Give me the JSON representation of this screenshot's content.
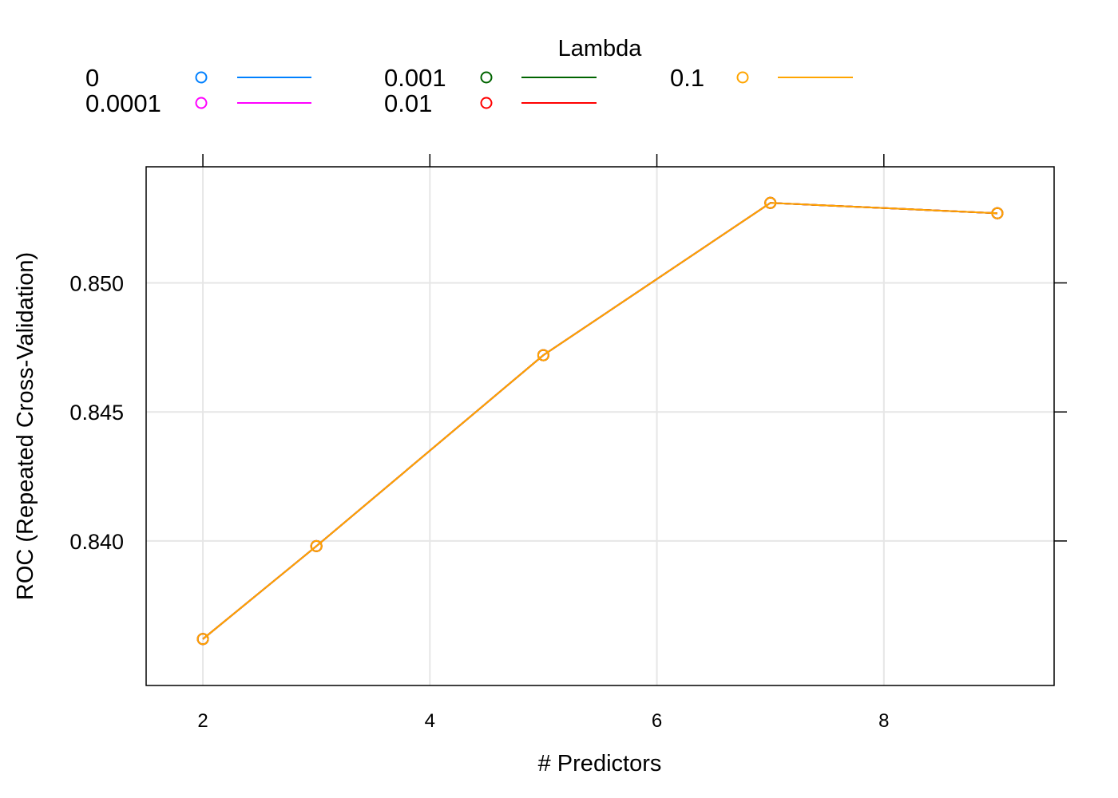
{
  "chart_data": {
    "type": "line",
    "xlabel": "# Predictors",
    "ylabel": "ROC (Repeated Cross-Validation)",
    "xlim": [
      1.5,
      9.5
    ],
    "ylim": [
      0.8344,
      0.8545
    ],
    "x_ticks": [
      2,
      4,
      6,
      8
    ],
    "x_tick_labels": [
      "2",
      "4",
      "6",
      "8"
    ],
    "y_ticks": [
      0.84,
      0.845,
      0.85
    ],
    "y_tick_labels": [
      "0.840",
      "0.845",
      "0.850"
    ],
    "grid": true,
    "legend_title": "Lambda",
    "legend_position": "top",
    "x": [
      2,
      3,
      5,
      7,
      9
    ],
    "series": [
      {
        "name": "0",
        "color": "#0080ff",
        "values": [
          0.8362,
          0.8398,
          0.8472,
          0.8531,
          0.8527
        ]
      },
      {
        "name": "0.0001",
        "color": "#ff00ff",
        "values": [
          0.8362,
          0.8398,
          0.8472,
          0.8531,
          0.8527
        ]
      },
      {
        "name": "0.001",
        "color": "#006400",
        "values": [
          0.8362,
          0.8398,
          0.8472,
          0.8531,
          0.8527
        ]
      },
      {
        "name": "0.01",
        "color": "#ff0000",
        "values": [
          0.8362,
          0.8398,
          0.8472,
          0.8531,
          0.8527
        ]
      },
      {
        "name": "0.1",
        "color": "#ffa500",
        "values": [
          0.8362,
          0.8398,
          0.8472,
          0.8531,
          0.8527
        ]
      }
    ],
    "grid_color": "#e6e6e6",
    "axis_color": "#000000"
  }
}
